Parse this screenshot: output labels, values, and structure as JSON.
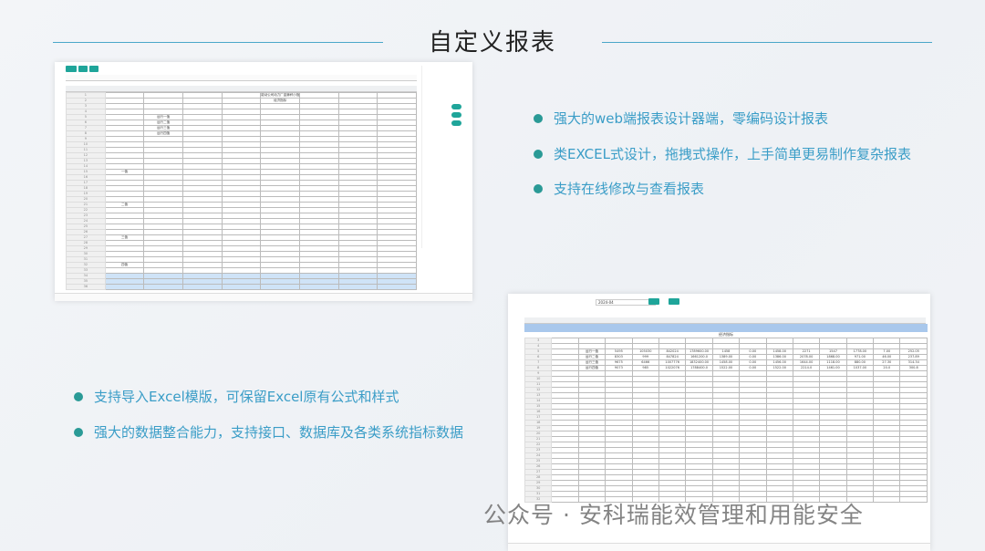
{
  "slide": {
    "title": "自定义报表",
    "accent_color": "#3a9dc7",
    "bullet_color": "#2a9a96",
    "bullets_right": [
      "强大的web端报表设计器端，零编码设计报表",
      "类EXCEL式设计，拖拽式操作，上手简单更易制作复杂报表",
      "支持在线修改与查看报表"
    ],
    "bullets_left": [
      "支持导入Excel模版，可保留Excel原有公式和样式",
      "强大的数据整合能力，支持接口、数据库及各类系统指标数据"
    ],
    "watermark": "公众号 · 安科瑞能效管理和用能安全"
  },
  "designer": {
    "sheet_title": "能动公司动力厂金狮杯小指标",
    "sheet_subtitle": "经济指标",
    "row_labels": [
      "运行一值",
      "运行二值",
      "运行三值",
      "运行四值"
    ],
    "group_labels": [
      "一值",
      "二值",
      "三值",
      "四值"
    ]
  },
  "viewer": {
    "date_value": "2024-04",
    "sheet_subtitle": "经济指标",
    "row_labels": [
      "运行一值",
      "运行二值",
      "运行三值",
      "运行四值"
    ],
    "rows": [
      [
        "5495",
        "105030",
        "842024",
        "1789600.00",
        "1458",
        "0.00",
        "1458.00",
        "2271",
        "1547",
        "1778.00",
        "7.00",
        "252.05"
      ],
      [
        "8303",
        "999",
        "847824",
        "1661200.0",
        "1389.00",
        "0.00",
        "1386.00",
        "2078.00",
        "1868.00",
        "971.00",
        "46.00",
        "237.89"
      ],
      [
        "9675",
        "6466",
        "1007776",
        "1832400.00",
        "1458.00",
        "0.00",
        "1456.00",
        "1644.00",
        "1118.00",
        "880.00",
        "27.30",
        "314.34"
      ],
      [
        "9073",
        "985",
        "1022076",
        "1788400.0",
        "1522.00",
        "0.00",
        "1522.00",
        "2214.0",
        "1461.00",
        "1037.00",
        "20.0",
        "300.8"
      ]
    ]
  }
}
